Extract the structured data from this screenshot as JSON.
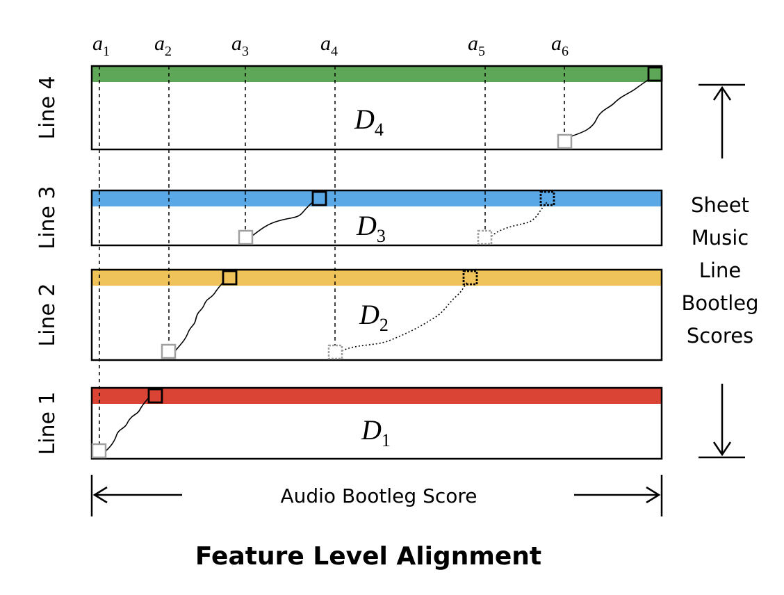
{
  "title": "Feature Level Alignment",
  "x_axis_label": "Audio Bootleg Score",
  "y_axis_label_lines": [
    "Sheet",
    "Music",
    "Line",
    "Bootleg",
    "Scores"
  ],
  "alignment_markers": [
    {
      "base": "a",
      "sub": "1"
    },
    {
      "base": "a",
      "sub": "2"
    },
    {
      "base": "a",
      "sub": "3"
    },
    {
      "base": "a",
      "sub": "4"
    },
    {
      "base": "a",
      "sub": "5"
    },
    {
      "base": "a",
      "sub": "6"
    }
  ],
  "lines": [
    {
      "label": "Line 4",
      "matrix": {
        "base": "D",
        "sub": "4"
      },
      "color": "#5fa758"
    },
    {
      "label": "Line 3",
      "matrix": {
        "base": "D",
        "sub": "3"
      },
      "color": "#5aa9e6"
    },
    {
      "label": "Line 2",
      "matrix": {
        "base": "D",
        "sub": "2"
      },
      "color": "#f0c35a"
    },
    {
      "label": "Line 1",
      "matrix": {
        "base": "D",
        "sub": "1"
      },
      "color": "#d94434"
    }
  ],
  "colors": {
    "stroke": "#000000",
    "start_box": "#a0a0a0"
  }
}
